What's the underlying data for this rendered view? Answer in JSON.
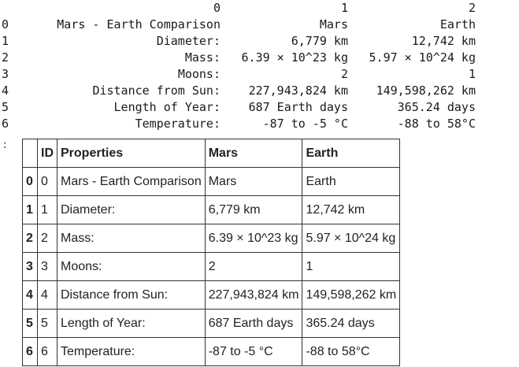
{
  "printout": {
    "columns": [
      "0",
      "1",
      "2"
    ],
    "rows": [
      {
        "index": "0",
        "c0": "Mars - Earth Comparison",
        "c1": "Mars",
        "c2": "Earth"
      },
      {
        "index": "1",
        "c0": "Diameter:",
        "c1": "6,779 km",
        "c2": "12,742 km"
      },
      {
        "index": "2",
        "c0": "Mass:",
        "c1": "6.39 × 10^23 kg",
        "c2": "5.97 × 10^24 kg"
      },
      {
        "index": "3",
        "c0": "Moons:",
        "c1": "2",
        "c2": "1"
      },
      {
        "index": "4",
        "c0": "Distance from Sun:",
        "c1": "227,943,824 km",
        "c2": "149,598,262 km"
      },
      {
        "index": "5",
        "c0": "Length of Year:",
        "c1": "687 Earth days",
        "c2": "365.24 days"
      },
      {
        "index": "6",
        "c0": "Temperature:",
        "c1": "-87 to -5 °C",
        "c2": "-88 to 58°C"
      }
    ]
  },
  "marker": ":",
  "table": {
    "headers": [
      "",
      "ID",
      "Properties",
      "Mars",
      "Earth"
    ],
    "rows": [
      {
        "idx": "0",
        "id": "0",
        "prop": "Mars - Earth Comparison",
        "mars": "Mars",
        "earth": "Earth"
      },
      {
        "idx": "1",
        "id": "1",
        "prop": "Diameter:",
        "mars": "6,779 km",
        "earth": "12,742 km"
      },
      {
        "idx": "2",
        "id": "2",
        "prop": "Mass:",
        "mars": "6.39 × 10^23 kg",
        "earth": "5.97 × 10^24 kg"
      },
      {
        "idx": "3",
        "id": "3",
        "prop": "Moons:",
        "mars": "2",
        "earth": "1"
      },
      {
        "idx": "4",
        "id": "4",
        "prop": "Distance from Sun:",
        "mars": "227,943,824 km",
        "earth": "149,598,262 km"
      },
      {
        "idx": "5",
        "id": "5",
        "prop": "Length of Year:",
        "mars": "687 Earth days",
        "earth": "365.24 days"
      },
      {
        "idx": "6",
        "id": "6",
        "prop": "Temperature:",
        "mars": "-87 to -5 °C",
        "earth": "-88 to 58°C"
      }
    ]
  }
}
